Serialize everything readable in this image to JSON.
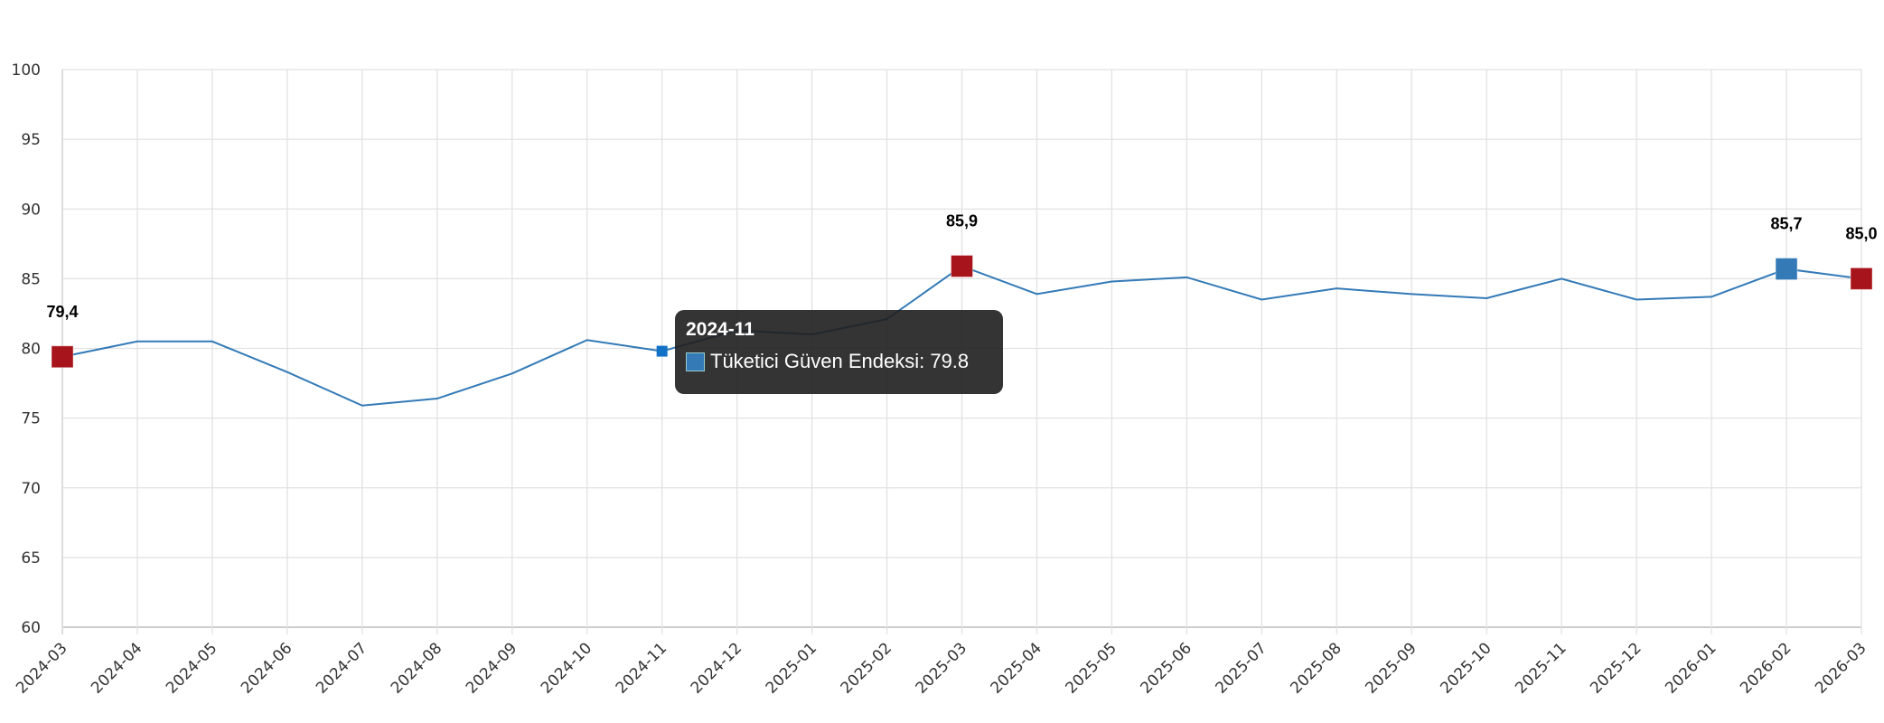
{
  "chart_data": {
    "type": "line",
    "categories": [
      "2024-03",
      "2024-04",
      "2024-05",
      "2024-06",
      "2024-07",
      "2024-08",
      "2024-09",
      "2024-10",
      "2024-11",
      "2024-12",
      "2025-01",
      "2025-02",
      "2025-03",
      "2025-04",
      "2025-05",
      "2025-06",
      "2025-07",
      "2025-08",
      "2025-09",
      "2025-10",
      "2025-11",
      "2025-12",
      "2026-01",
      "2026-02",
      "2026-03"
    ],
    "series": [
      {
        "name": "Tüketici Güven Endeksi",
        "values": [
          79.4,
          80.5,
          80.5,
          78.3,
          75.9,
          76.4,
          78.2,
          80.6,
          79.8,
          81.3,
          81.0,
          82.1,
          85.9,
          83.9,
          84.8,
          85.1,
          83.5,
          84.3,
          83.9,
          83.6,
          85.0,
          83.5,
          83.7,
          85.7,
          85.0
        ],
        "color": "#337ab7"
      }
    ],
    "ylim": [
      60,
      100
    ],
    "yticks": [
      "60",
      "65",
      "70",
      "75",
      "80",
      "85",
      "90",
      "95",
      "100"
    ],
    "grid": true,
    "highlighted_points": [
      {
        "category": "2024-03",
        "label": "79,4",
        "color": "#a8141b"
      },
      {
        "category": "2025-03",
        "label": "85,9",
        "color": "#a8141b"
      },
      {
        "category": "2026-02",
        "label": "85,7",
        "color": "#337ab7"
      },
      {
        "category": "2026-03",
        "label": "85,0",
        "color": "#a8141b"
      }
    ],
    "tooltip": {
      "title": "2024-11",
      "text": "Tüketici Güven Endeksi: 79.8",
      "category": "2024-11"
    }
  }
}
